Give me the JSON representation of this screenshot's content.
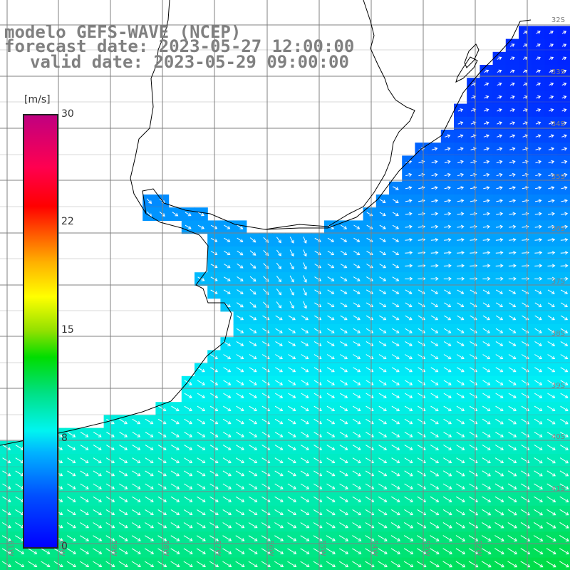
{
  "title": {
    "model": "modelo GEFS-WAVE (NCEP)",
    "forecast": "forecast date: 2023-05-27 12:00:00",
    "valid": "valid date: 2023-05-29 09:00:00"
  },
  "colorbar": {
    "unit": "[m/s]",
    "ticks": [
      "30",
      "22",
      "15",
      "8",
      "0"
    ],
    "range": [
      0,
      30
    ],
    "colors": [
      "#0000ff",
      "#00b4ff",
      "#00f5f0",
      "#00dd00",
      "#ffff00",
      "#ff6000",
      "#ff0000",
      "#c00080"
    ]
  },
  "lat_labels": [
    "32S",
    "33S",
    "34S",
    "35S",
    "36S",
    "37S",
    "38S",
    "39S",
    "40S",
    "41S"
  ],
  "lon_labels": [
    "61W",
    "60W",
    "59W",
    "58W",
    "57W",
    "56W",
    "55W",
    "54W",
    "53W",
    "52W"
  ],
  "colors": {
    "background": "#ffffff",
    "grid": "#808080",
    "coastline": "#000000",
    "arrow": "#ffffff",
    "label": "#808080"
  }
}
